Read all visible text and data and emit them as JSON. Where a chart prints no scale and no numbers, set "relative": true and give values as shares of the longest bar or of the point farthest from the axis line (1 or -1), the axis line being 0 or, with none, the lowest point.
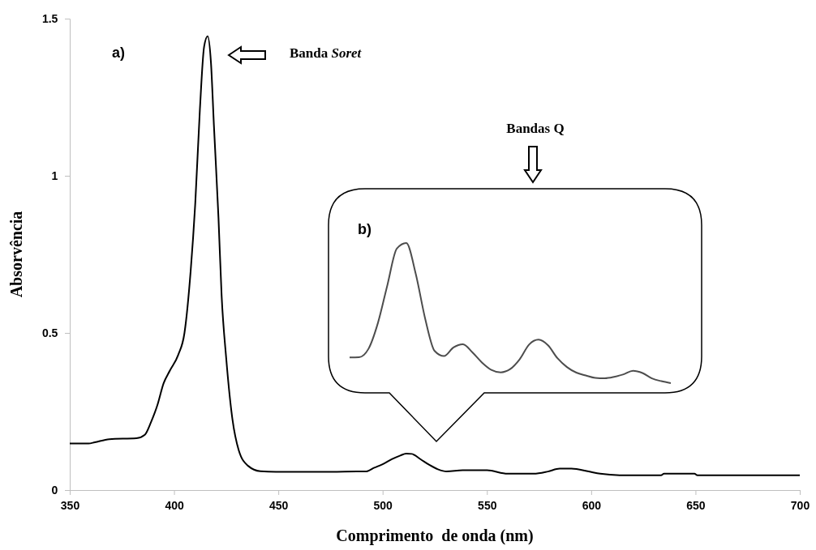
{
  "chart_data": [
    {
      "type": "line",
      "xlabel": "Comprimento  de onda (nm)",
      "ylabel": "Absorvência",
      "xlim": [
        350,
        700
      ],
      "xticks": [
        350,
        400,
        450,
        500,
        550,
        600,
        650,
        700
      ],
      "ylim": [
        0,
        1.5
      ],
      "yticks": [
        0,
        0.5,
        1,
        1.5
      ],
      "grid": false,
      "marker": "none",
      "line_style": "solid",
      "color": "#000000",
      "x": [
        350,
        359,
        362,
        369,
        382,
        386,
        389,
        392,
        395,
        398,
        402,
        405,
        408,
        410.2,
        412.4,
        414.4,
        416.1,
        417.7,
        419.1,
        421.3,
        422.8,
        425,
        428,
        431,
        435.5,
        441.4,
        448.8,
        475.6,
        487.7,
        491.8,
        496,
        500,
        504.4,
        508.5,
        511.3,
        514,
        518.2,
        522.4,
        526.5,
        530.7,
        538.4,
        550.1,
        559.9,
        572.4,
        579.3,
        584.9,
        590.5,
        598.8,
        604.3,
        615.5,
        633.5,
        634.9,
        649.5,
        650.9,
        700
      ],
      "values": [
        0.148,
        0.148,
        0.152,
        0.162,
        0.165,
        0.176,
        0.217,
        0.27,
        0.34,
        0.38,
        0.43,
        0.5,
        0.7,
        0.916,
        1.212,
        1.41,
        1.444,
        1.36,
        1.162,
        0.867,
        0.62,
        0.42,
        0.225,
        0.127,
        0.077,
        0.06,
        0.058,
        0.058,
        0.059,
        0.059,
        0.071,
        0.082,
        0.098,
        0.11,
        0.116,
        0.115,
        0.098,
        0.08,
        0.066,
        0.059,
        0.063,
        0.063,
        0.052,
        0.052,
        0.059,
        0.068,
        0.068,
        0.059,
        0.052,
        0.047,
        0.047,
        0.052,
        0.052,
        0.047,
        0.047
      ],
      "annotations": [
        "a)",
        "Banda Soret",
        "Bandas Q"
      ]
    },
    {
      "type": "line",
      "relative": true,
      "color": "#4d4d4d",
      "marker": "none",
      "line_style": "solid",
      "categories": [
        null,
        null,
        null,
        null,
        null,
        null,
        null,
        null,
        null,
        null,
        null,
        null,
        null,
        null,
        null,
        null,
        null,
        null,
        null,
        null,
        null,
        null,
        null,
        null,
        null,
        null,
        null,
        null,
        null,
        null,
        null,
        null,
        null,
        null,
        null
      ],
      "values": [
        0.183,
        0.185,
        0.245,
        0.43,
        0.7,
        0.96,
        1,
        0.78,
        0.46,
        0.23,
        0.193,
        0.255,
        0.278,
        0.22,
        0.148,
        0.095,
        0.077,
        0.1,
        0.17,
        0.275,
        0.31,
        0.27,
        0.178,
        0.115,
        0.075,
        0.055,
        0.038,
        0.035,
        0.045,
        0.063,
        0.088,
        0.072,
        0.034,
        0.014,
        0
      ],
      "annotations": [
        "b)"
      ]
    }
  ]
}
